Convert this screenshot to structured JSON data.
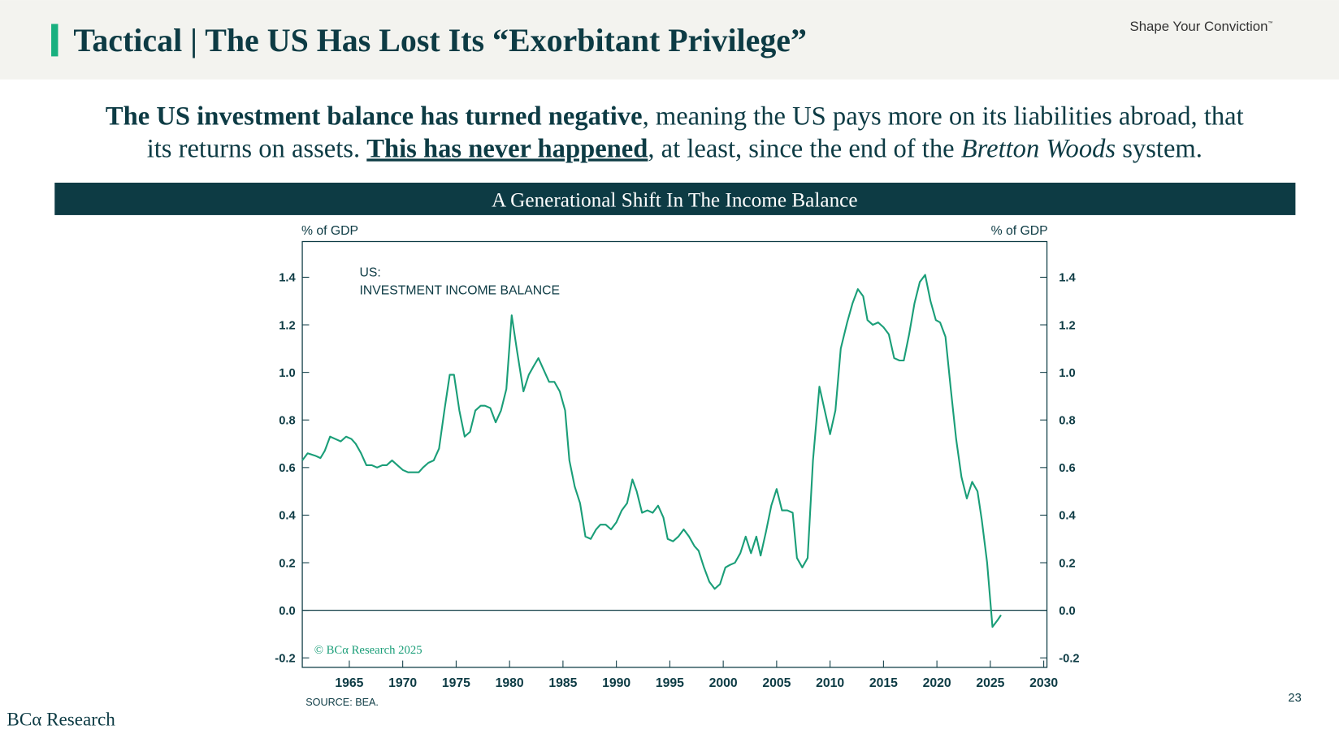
{
  "header": {
    "title": "Tactical | The US Has Lost Its “Exorbitant Privilege”",
    "brand": "Shape Your Conviction",
    "brand_mark": "™"
  },
  "subtitle": {
    "line1": [
      {
        "text": "The US investment balance has turned negative",
        "style": "bold"
      },
      {
        "text": ", meaning the US pays more on its liabilities abroad, that",
        "style": "normal"
      }
    ],
    "line2": [
      {
        "text": "its returns on assets. ",
        "style": "normal"
      },
      {
        "text": "This has never happened",
        "style": "bold-underline"
      },
      {
        "text": ", at least, since the end of the ",
        "style": "normal"
      },
      {
        "text": "Bretton Woods",
        "style": "italic"
      },
      {
        "text": " system.",
        "style": "normal"
      }
    ]
  },
  "chart_data": {
    "type": "line",
    "title": "A Generational Shift In The Income Balance",
    "ylabel": "% of GDP",
    "y2label": "% of GDP",
    "annotations": [
      "US:",
      "INVESTMENT INCOME BALANCE"
    ],
    "copyright": "© BCα Research 2025",
    "source": "SOURCE: BEA.",
    "color": "#1a9e78",
    "x": [
      1960.6,
      1961.1,
      1961.8,
      1962.3,
      1962.7,
      1963.2,
      1963.7,
      1964.2,
      1964.7,
      1965.2,
      1965.6,
      1966.1,
      1966.6,
      1967.1,
      1967.6,
      1968.1,
      1968.5,
      1969.0,
      1969.5,
      1970.0,
      1970.5,
      1971.0,
      1971.5,
      1971.9,
      1972.4,
      1972.9,
      1973.4,
      1973.9,
      1974.4,
      1974.8,
      1975.3,
      1975.8,
      1976.3,
      1976.8,
      1977.3,
      1977.7,
      1978.2,
      1978.7,
      1979.2,
      1979.7,
      1980.2,
      1980.7,
      1981.3,
      1981.8,
      1982.3,
      1982.7,
      1983.2,
      1983.7,
      1984.2,
      1984.7,
      1985.2,
      1985.6,
      1986.1,
      1986.6,
      1987.1,
      1987.6,
      1988.1,
      1988.5,
      1989.0,
      1989.5,
      1990.0,
      1990.5,
      1991.0,
      1991.5,
      1991.9,
      1992.4,
      1992.9,
      1993.4,
      1993.9,
      1994.4,
      1994.8,
      1995.3,
      1995.8,
      1996.3,
      1996.8,
      1997.3,
      1997.7,
      1998.2,
      1998.7,
      1999.2,
      1999.7,
      2000.2,
      2000.6,
      2001.1,
      2001.6,
      2002.1,
      2002.6,
      2003.1,
      2003.5,
      2004.0,
      2004.5,
      2005.0,
      2005.5,
      2006.0,
      2006.5,
      2006.9,
      2007.4,
      2007.9,
      2008.4,
      2009.0,
      2009.5,
      2010.0,
      2010.5,
      2011.0,
      2011.6,
      2012.1,
      2012.6,
      2013.1,
      2013.5,
      2014.0,
      2014.5,
      2015.0,
      2015.5,
      2016.0,
      2016.5,
      2016.9,
      2017.4,
      2017.9,
      2018.4,
      2018.9,
      2019.4,
      2019.9,
      2020.3,
      2020.8,
      2021.3,
      2021.8,
      2022.3,
      2022.8,
      2023.3,
      2023.8,
      2024.2,
      2024.7,
      2025.2,
      2025.7,
      2026.0
    ],
    "values": [
      0.63,
      0.66,
      0.65,
      0.64,
      0.67,
      0.73,
      0.72,
      0.71,
      0.73,
      0.72,
      0.7,
      0.66,
      0.61,
      0.61,
      0.6,
      0.61,
      0.61,
      0.63,
      0.61,
      0.59,
      0.58,
      0.58,
      0.58,
      0.6,
      0.62,
      0.63,
      0.68,
      0.84,
      0.99,
      0.99,
      0.84,
      0.73,
      0.75,
      0.84,
      0.86,
      0.86,
      0.85,
      0.79,
      0.84,
      0.93,
      1.24,
      1.09,
      0.92,
      0.99,
      1.03,
      1.06,
      1.01,
      0.96,
      0.96,
      0.92,
      0.84,
      0.63,
      0.52,
      0.45,
      0.31,
      0.3,
      0.34,
      0.36,
      0.36,
      0.34,
      0.37,
      0.42,
      0.45,
      0.55,
      0.5,
      0.41,
      0.42,
      0.41,
      0.44,
      0.39,
      0.3,
      0.29,
      0.31,
      0.34,
      0.31,
      0.27,
      0.25,
      0.18,
      0.12,
      0.09,
      0.11,
      0.18,
      0.19,
      0.2,
      0.24,
      0.31,
      0.24,
      0.31,
      0.23,
      0.33,
      0.44,
      0.51,
      0.42,
      0.42,
      0.41,
      0.22,
      0.18,
      0.22,
      0.63,
      0.94,
      0.84,
      0.74,
      0.84,
      1.1,
      1.21,
      1.29,
      1.35,
      1.32,
      1.22,
      1.2,
      1.21,
      1.19,
      1.16,
      1.06,
      1.05,
      1.05,
      1.16,
      1.29,
      1.38,
      1.41,
      1.3,
      1.22,
      1.21,
      1.15,
      0.93,
      0.72,
      0.56,
      0.47,
      0.54,
      0.5,
      0.38,
      0.2,
      -0.07,
      -0.04,
      -0.02
    ],
    "xlim": [
      1960.6,
      2030.3
    ],
    "xticks": [
      1965,
      1970,
      1975,
      1980,
      1985,
      1990,
      1995,
      2000,
      2005,
      2010,
      2015,
      2020,
      2025,
      2030
    ],
    "ylim": [
      -0.24,
      1.55
    ],
    "yticks": [
      {
        "value": -0.2,
        "label": "-0.2"
      },
      {
        "value": 0,
        "label": "0.0"
      },
      0.2,
      0.4,
      0.6,
      0.8,
      {
        "value": 1,
        "label": "1.0"
      },
      1.2,
      1.4
    ],
    "y2lim": [
      -0.24,
      1.55
    ],
    "y2ticks": [
      {
        "value": -0.2,
        "label": "-0.2"
      },
      {
        "value": 0,
        "label": "0.0"
      },
      0.2,
      0.4,
      0.6,
      0.8,
      {
        "value": 1,
        "label": "1.0"
      },
      1.2,
      1.4
    ],
    "zero_line": true
  },
  "footer": {
    "logo": "BCα Research",
    "page": "23"
  }
}
